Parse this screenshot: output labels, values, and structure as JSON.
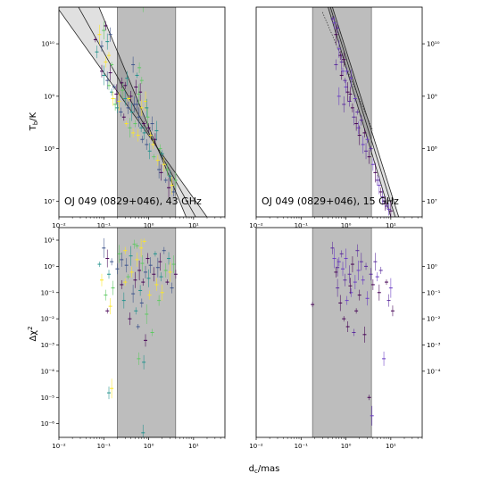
{
  "figure": {
    "xlabel_main": "d",
    "xlabel_sub": "c",
    "xlabel_unit": "/mas",
    "ylabel_top_main": "T",
    "ylabel_top_sub": "b",
    "ylabel_top_unit": "/K",
    "ylabel_bottom_main": "Δχ",
    "ylabel_bottom_sup": "2"
  },
  "chart_data": [
    {
      "type": "scatter",
      "panel": "top-left",
      "annotation": "OJ 049 (0829+046), 43 GHz",
      "xscale": "log",
      "yscale": "log",
      "xlim": [
        0.01,
        50
      ],
      "ylim": [
        5000000.0,
        50000000000.0
      ],
      "xticks": [
        "10⁻²",
        "10⁻¹",
        "10⁰",
        "10¹"
      ],
      "yticks": [
        "10⁷",
        "10⁸",
        "10⁹",
        "10¹⁰"
      ],
      "ytick_side": "left",
      "shaded_region_x": [
        0.2,
        4.0
      ],
      "fit_lines": [
        {
          "p1": [
            0.1,
            30000000000.0
          ],
          "p2": [
            4.0,
            15000000.0
          ]
        },
        {
          "p1": [
            0.06,
            15000000000.0
          ],
          "p2": [
            4.0,
            24000000.0
          ]
        },
        {
          "p1": [
            0.06,
            5200000000.0
          ],
          "p2": [
            4.0,
            34000000.0
          ]
        }
      ],
      "points": [
        [
          0.065,
          12000000000.0
        ],
        [
          0.07,
          7000000000.0
        ],
        [
          0.08,
          15000000000.0
        ],
        [
          0.09,
          9000000000.0
        ],
        [
          0.1,
          18000000000.0
        ],
        [
          0.11,
          22000000000.0
        ],
        [
          0.12,
          11000000000.0
        ],
        [
          0.13,
          6000000000.0
        ],
        [
          0.14,
          15000000000.0
        ],
        [
          0.15,
          4000000000.0
        ],
        [
          0.09,
          3000000000.0
        ],
        [
          0.1,
          2500000000.0
        ],
        [
          0.11,
          4500000000.0
        ],
        [
          0.12,
          2000000000.0
        ],
        [
          0.13,
          1600000000.0
        ],
        [
          0.14,
          2800000000.0
        ],
        [
          0.15,
          1200000000.0
        ],
        [
          0.16,
          900000000.0
        ],
        [
          0.17,
          1500000000.0
        ],
        [
          0.18,
          700000000.0
        ],
        [
          0.19,
          1100000000.0
        ],
        [
          0.2,
          600000000.0
        ],
        [
          0.22,
          800000000.0
        ],
        [
          0.24,
          500000000.0
        ],
        [
          0.26,
          1300000000.0
        ],
        [
          0.28,
          400000000.0
        ],
        [
          0.3,
          900000000.0
        ],
        [
          0.32,
          300000000.0
        ],
        [
          0.35,
          600000000.0
        ],
        [
          0.38,
          250000000.0
        ],
        [
          0.4,
          1000000000.0
        ],
        [
          0.42,
          500000000.0
        ],
        [
          0.45,
          200000000.0
        ],
        [
          0.48,
          700000000.0
        ],
        [
          0.5,
          300000000.0
        ],
        [
          0.52,
          1500000000.0
        ],
        [
          0.55,
          2500000000.0
        ],
        [
          0.58,
          180000000.0
        ],
        [
          0.6,
          400000000.0
        ],
        [
          0.62,
          3500000000.0
        ],
        [
          0.65,
          1200000000.0
        ],
        [
          0.68,
          250000000.0
        ],
        [
          0.7,
          600000000.0
        ],
        [
          0.72,
          150000000.0
        ],
        [
          0.75,
          55000000000.0
        ],
        [
          0.78,
          300000000.0
        ],
        [
          0.8,
          200000000.0
        ],
        [
          0.85,
          800000000.0
        ],
        [
          0.9,
          120000000.0
        ],
        [
          0.95,
          400000000.0
        ],
        [
          1.0,
          250000000.0
        ],
        [
          1.05,
          90000000.0
        ],
        [
          1.1,
          180000000.0
        ],
        [
          1.2,
          300000000.0
        ],
        [
          1.3,
          70000000.0
        ],
        [
          1.4,
          150000000.0
        ],
        [
          1.5,
          220000000.0
        ],
        [
          1.6,
          60000000.0
        ],
        [
          1.7,
          40000000.0
        ],
        [
          1.8,
          100000000.0
        ],
        [
          1.9,
          35000000.0
        ],
        [
          2.0,
          80000000.0
        ],
        [
          2.2,
          50000000.0
        ],
        [
          2.4,
          25000000.0
        ],
        [
          2.6,
          40000000.0
        ],
        [
          2.8,
          18000000.0
        ],
        [
          3.0,
          30000000.0
        ],
        [
          3.3,
          20000000.0
        ],
        [
          3.6,
          15000000.0
        ],
        [
          4.0,
          25000000.0
        ],
        [
          0.3,
          1600000000.0
        ],
        [
          0.33,
          2200000000.0
        ],
        [
          0.36,
          900000000.0
        ],
        [
          0.55,
          700000000.0
        ],
        [
          0.6,
          1100000000.0
        ],
        [
          0.25,
          1800000000.0
        ],
        [
          0.9,
          600000000.0
        ],
        [
          1.25,
          120000000.0
        ],
        [
          0.45,
          4000000000.0
        ],
        [
          0.7,
          2000000000.0
        ]
      ],
      "palette": [
        "#440154",
        "#3b528b",
        "#21918c",
        "#5ec962",
        "#fde725"
      ]
    },
    {
      "type": "scatter",
      "panel": "top-right",
      "annotation": "OJ 049 (0829+046), 15 GHz",
      "xscale": "log",
      "yscale": "log",
      "xlim": [
        0.01,
        50
      ],
      "ylim": [
        5000000.0,
        50000000000.0
      ],
      "xticks": [
        "10⁻²",
        "10⁻¹",
        "10⁰",
        "10¹"
      ],
      "yticks": [
        "10⁷",
        "10⁸",
        "10⁹",
        "10¹⁰"
      ],
      "ytick_side": "right",
      "shaded_region_x": [
        0.18,
        3.7
      ],
      "fit_lines": [
        {
          "p1": [
            0.5,
            50000000000.0
          ],
          "p2": [
            15.0,
            5000000.0
          ]
        },
        {
          "p1": [
            0.45,
            50000000000.0
          ],
          "p2": [
            12.5,
            5000000.0
          ]
        },
        {
          "p1": [
            0.4,
            50000000000.0
          ],
          "p2": [
            10.0,
            5000000.0
          ]
        }
      ],
      "dotted_line": {
        "p1": [
          0.3,
          40000000000.0
        ],
        "p2": [
          4.0,
          220000000.0
        ]
      },
      "points": [
        [
          0.5,
          30000000000.0
        ],
        [
          0.55,
          25000000000.0
        ],
        [
          0.6,
          15000000000.0
        ],
        [
          0.65,
          20000000000.0
        ],
        [
          0.7,
          8000000000.0
        ],
        [
          0.75,
          6000000000.0
        ],
        [
          0.8,
          4500000000.0
        ],
        [
          0.85,
          3000000000.0
        ],
        [
          0.9,
          5000000000.0
        ],
        [
          0.95,
          2000000000.0
        ],
        [
          1.0,
          1500000000.0
        ],
        [
          1.1,
          1200000000.0
        ],
        [
          1.2,
          800000000.0
        ],
        [
          1.3,
          2200000000.0
        ],
        [
          1.4,
          600000000.0
        ],
        [
          1.5,
          400000000.0
        ],
        [
          1.6,
          900000000.0
        ],
        [
          1.7,
          300000000.0
        ],
        [
          1.8,
          500000000.0
        ],
        [
          1.9,
          250000000.0
        ],
        [
          2.0,
          180000000.0
        ],
        [
          2.2,
          350000000.0
        ],
        [
          2.4,
          120000000.0
        ],
        [
          2.6,
          200000000.0
        ],
        [
          2.8,
          90000000.0
        ],
        [
          3.0,
          150000000.0
        ],
        [
          3.3,
          70000000.0
        ],
        [
          3.6,
          100000000.0
        ],
        [
          4.0,
          50000000.0
        ],
        [
          4.5,
          35000000.0
        ],
        [
          5.0,
          25000000.0
        ],
        [
          5.5,
          20000000.0
        ],
        [
          6.0,
          15000000.0
        ],
        [
          6.5,
          12000000.0
        ],
        [
          7.0,
          10000000.0
        ],
        [
          7.5,
          9000000.0
        ],
        [
          8.0,
          8000000.0
        ],
        [
          9.0,
          7000000.0
        ],
        [
          10.0,
          6500000.0
        ],
        [
          0.6,
          4000000000.0
        ],
        [
          0.7,
          1000000000.0
        ],
        [
          0.8,
          2500000000.0
        ],
        [
          0.9,
          700000000.0
        ],
        [
          1.05,
          3000000000.0
        ],
        [
          1.25,
          1100000000.0
        ]
      ],
      "palette": [
        "#440154",
        "#5b2c9e",
        "#6a3cc4"
      ]
    },
    {
      "type": "scatter",
      "panel": "bottom-left",
      "xscale": "log",
      "yscale": "log",
      "xlim": [
        0.01,
        50
      ],
      "ylim": [
        3e-07,
        30
      ],
      "xticks": [
        "10⁻²",
        "10⁻¹",
        "10⁰",
        "10¹"
      ],
      "yticks": [
        "10⁻⁶",
        "10⁻⁵",
        "10⁻⁴",
        "10⁻³",
        "10⁻²",
        "10⁻¹",
        "10⁰",
        "10¹"
      ],
      "ytick_side": "left",
      "shaded_region_x": [
        0.2,
        4.0
      ],
      "points": [
        [
          0.08,
          1.2
        ],
        [
          0.09,
          0.3
        ],
        [
          0.1,
          5
        ],
        [
          0.11,
          0.08
        ],
        [
          0.12,
          2
        ],
        [
          0.13,
          0.5
        ],
        [
          0.14,
          0.03
        ],
        [
          0.15,
          1.5
        ],
        [
          0.16,
          0.15
        ],
        [
          0.12,
          0.02
        ],
        [
          0.13,
          1.5e-05
        ],
        [
          0.15,
          2.2e-05
        ],
        [
          0.2,
          0.8
        ],
        [
          0.22,
          3
        ],
        [
          0.25,
          0.2
        ],
        [
          0.28,
          0.05
        ],
        [
          0.3,
          4
        ],
        [
          0.32,
          1.1
        ],
        [
          0.35,
          0.4
        ],
        [
          0.38,
          0.01
        ],
        [
          0.4,
          2.5
        ],
        [
          0.42,
          0.6
        ],
        [
          0.45,
          0.09
        ],
        [
          0.48,
          7
        ],
        [
          0.5,
          0.3
        ],
        [
          0.52,
          0.02
        ],
        [
          0.55,
          1.8
        ],
        [
          0.58,
          0.005
        ],
        [
          0.6,
          0.0003
        ],
        [
          0.62,
          0.7
        ],
        [
          0.65,
          0.12
        ],
        [
          0.68,
          5
        ],
        [
          0.7,
          0.04
        ],
        [
          0.72,
          1.3
        ],
        [
          0.75,
          0.25
        ],
        [
          0.78,
          0.00022
        ],
        [
          0.8,
          9
        ],
        [
          0.85,
          0.6
        ],
        [
          0.9,
          0.015
        ],
        [
          0.95,
          2
        ],
        [
          1.0,
          0.35
        ],
        [
          1.05,
          0.08
        ],
        [
          1.1,
          1.1
        ],
        [
          1.2,
          0.003
        ],
        [
          1.3,
          0.5
        ],
        [
          1.4,
          3
        ],
        [
          1.5,
          0.2
        ],
        [
          1.6,
          0.9
        ],
        [
          1.7,
          0.05
        ],
        [
          1.8,
          1.5
        ],
        [
          1.9,
          0.4
        ],
        [
          2.0,
          0.1
        ],
        [
          2.2,
          4
        ],
        [
          2.4,
          0.7
        ],
        [
          2.6,
          0.25
        ],
        [
          2.8,
          2
        ],
        [
          3.0,
          0.6
        ],
        [
          3.3,
          0.15
        ],
        [
          3.6,
          1.2
        ],
        [
          4.0,
          0.5
        ],
        [
          0.75,
          4.5e-07
        ],
        [
          0.3,
          0.25
        ],
        [
          0.25,
          1.8
        ],
        [
          0.55,
          6
        ],
        [
          0.85,
          0.0015
        ]
      ],
      "palette": [
        "#440154",
        "#3b528b",
        "#21918c",
        "#5ec962",
        "#fde725"
      ]
    },
    {
      "type": "scatter",
      "panel": "bottom-right",
      "xscale": "log",
      "yscale": "log",
      "xlim": [
        0.01,
        50
      ],
      "ylim": [
        3e-07,
        30
      ],
      "xticks": [
        "10⁻²",
        "10⁻¹",
        "10⁰",
        "10¹"
      ],
      "yticks": [
        "10⁻⁴",
        "10⁻³",
        "10⁻²",
        "10⁻¹",
        "10⁰"
      ],
      "ytick_side": "right",
      "shaded_region_x": [
        0.18,
        3.7
      ],
      "points": [
        [
          0.18,
          0.035
        ],
        [
          0.5,
          5
        ],
        [
          0.55,
          2
        ],
        [
          0.6,
          0.6
        ],
        [
          0.65,
          0.15
        ],
        [
          0.7,
          1.5
        ],
        [
          0.75,
          0.04
        ],
        [
          0.8,
          3
        ],
        [
          0.85,
          0.8
        ],
        [
          0.9,
          0.01
        ],
        [
          0.95,
          0.3
        ],
        [
          1.0,
          2
        ],
        [
          1.1,
          0.005
        ],
        [
          1.2,
          0.5
        ],
        [
          1.3,
          0.1
        ],
        [
          1.4,
          1.2
        ],
        [
          1.5,
          0.003
        ],
        [
          1.6,
          0.25
        ],
        [
          1.7,
          0.02
        ],
        [
          1.8,
          4
        ],
        [
          1.9,
          0.7
        ],
        [
          2.0,
          0.08
        ],
        [
          2.2,
          1.5
        ],
        [
          2.4,
          0.3
        ],
        [
          2.6,
          0.0025
        ],
        [
          2.8,
          1
        ],
        [
          3.0,
          0.06
        ],
        [
          3.3,
          1e-05
        ],
        [
          3.6,
          0.5
        ],
        [
          3.8,
          2e-06
        ],
        [
          4.0,
          0.2
        ],
        [
          4.5,
          1.5
        ],
        [
          5.0,
          0.4
        ],
        [
          5.5,
          0.1
        ],
        [
          6.0,
          0.7
        ],
        [
          7.0,
          0.0003
        ],
        [
          8.0,
          0.25
        ],
        [
          9.0,
          0.05
        ],
        [
          10.0,
          0.15
        ],
        [
          11.0,
          0.02
        ],
        [
          0.65,
          0.9
        ],
        [
          1.05,
          0.05
        ],
        [
          1.25,
          0.18
        ]
      ],
      "palette": [
        "#440154",
        "#5b2c9e",
        "#6a3cc4"
      ]
    }
  ]
}
